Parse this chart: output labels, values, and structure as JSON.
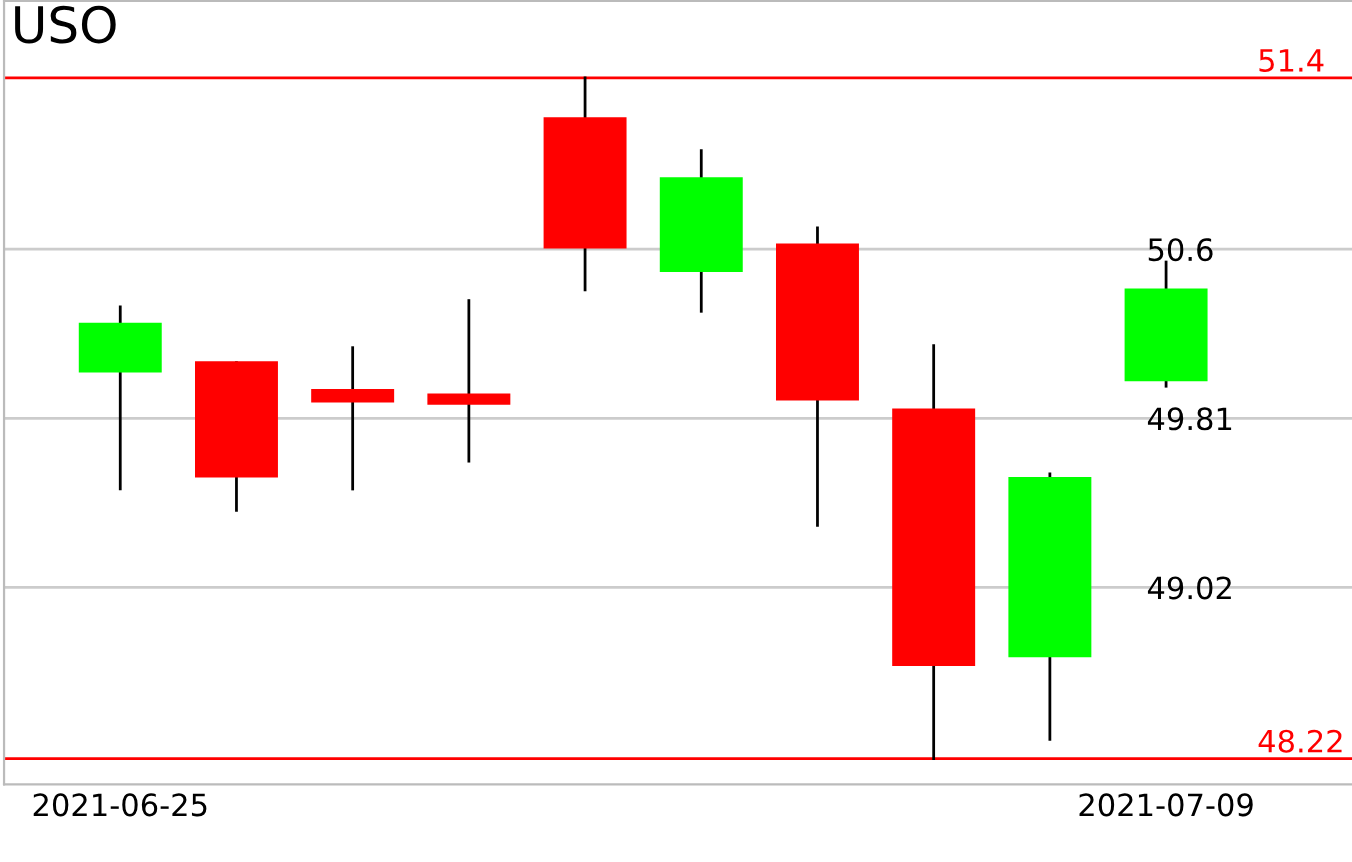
{
  "chart_data": {
    "type": "candlestick",
    "title": "USO",
    "categories": [
      "2021-06-25",
      null,
      null,
      null,
      null,
      null,
      null,
      null,
      null,
      "2021-07-09"
    ],
    "ohlc": [
      [
        50.03,
        50.33,
        49.48,
        50.25
      ],
      [
        50.07,
        50.07,
        49.38,
        49.54
      ],
      [
        49.94,
        50.14,
        49.48,
        49.89
      ],
      [
        49.92,
        50.36,
        49.61,
        49.88
      ],
      [
        51.21,
        51.4,
        50.41,
        50.61
      ],
      [
        50.5,
        51.06,
        50.31,
        50.93
      ],
      [
        50.62,
        50.7,
        49.31,
        49.9
      ],
      [
        49.85,
        50.15,
        48.22,
        48.66
      ],
      [
        48.7,
        49.55,
        48.31,
        49.53
      ],
      [
        49.99,
        50.54,
        49.96,
        50.41
      ]
    ],
    "colors": [
      "#00ff00",
      "#ff0000",
      "#ff0000",
      "#ff0000",
      "#ff0000",
      "#00ff00",
      "#ff0000",
      "#ff0000",
      "#00ff00",
      "#00ff00"
    ],
    "ylim": [
      48.1,
      51.76
    ],
    "yticks": [
      50.6,
      49.81,
      49.02
    ],
    "grid": "y",
    "ref_lines": [
      {
        "axis": "y",
        "value": 51.4,
        "label": "51.4",
        "color": "#ff0000"
      },
      {
        "axis": "y",
        "value": 48.22,
        "label": "48.22",
        "color": "#ff0000"
      }
    ]
  }
}
